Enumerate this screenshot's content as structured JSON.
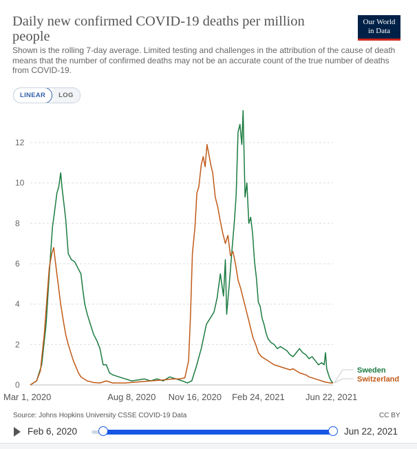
{
  "header": {
    "title": "Daily new confirmed COVID-19 deaths per million people",
    "subtitle": "Shown is the rolling 7-day average. Limited testing and challenges in the attribution of the cause of death means that the number of confirmed deaths may not be an accurate count of the true number of deaths from COVID-19.",
    "logo_line1": "Our World",
    "logo_line2": "in Data"
  },
  "controls": {
    "linear_label": "LINEAR",
    "log_label": "LOG"
  },
  "footer": {
    "source": "Source: Johns Hopkins University CSSE COVID-19 Data",
    "license": "CC BY",
    "start_date": "Feb 6, 2020",
    "end_date": "Jun 22, 2021"
  },
  "colors": {
    "sweden": "#1b7b40",
    "switzerland": "#c05917",
    "accent": "#1656e3",
    "logo_bg": "#002147",
    "logo_bar": "#ce261e"
  },
  "chart_data": {
    "type": "line",
    "title": "Daily new confirmed COVID-19 deaths per million people",
    "xlabel": "",
    "ylabel": "",
    "x_ticks": [
      "Mar 1, 2020",
      "Aug 8, 2020",
      "Nov 16, 2020",
      "Feb 24, 2021",
      "Jun 22, 2021"
    ],
    "x_range_days": [
      0,
      478
    ],
    "x_tick_days": [
      0,
      160,
      260,
      360,
      478
    ],
    "y_ticks": [
      0,
      2,
      4,
      6,
      8,
      10,
      12
    ],
    "ylim": [
      0,
      13.6
    ],
    "series": [
      {
        "name": "Sweden",
        "color": "#1b7b40",
        "points": [
          [
            0,
            0
          ],
          [
            10,
            0.2
          ],
          [
            18,
            1
          ],
          [
            25,
            3
          ],
          [
            30,
            5.5
          ],
          [
            35,
            7.8
          ],
          [
            38,
            8.5
          ],
          [
            42,
            9.5
          ],
          [
            45,
            9.8
          ],
          [
            48,
            10.5
          ],
          [
            50,
            9.8
          ],
          [
            53,
            9.0
          ],
          [
            56,
            8.2
          ],
          [
            60,
            6.5
          ],
          [
            65,
            6.2
          ],
          [
            70,
            6.1
          ],
          [
            75,
            5.8
          ],
          [
            80,
            5.5
          ],
          [
            83,
            4.7
          ],
          [
            86,
            4.0
          ],
          [
            90,
            3.5
          ],
          [
            95,
            3.0
          ],
          [
            100,
            2.5
          ],
          [
            105,
            2.2
          ],
          [
            110,
            1.8
          ],
          [
            115,
            1.0
          ],
          [
            120,
            1.0
          ],
          [
            125,
            0.6
          ],
          [
            130,
            0.5
          ],
          [
            140,
            0.4
          ],
          [
            150,
            0.3
          ],
          [
            160,
            0.2
          ],
          [
            170,
            0.25
          ],
          [
            180,
            0.3
          ],
          [
            190,
            0.2
          ],
          [
            200,
            0.3
          ],
          [
            210,
            0.2
          ],
          [
            220,
            0.4
          ],
          [
            230,
            0.3
          ],
          [
            240,
            0.2
          ],
          [
            248,
            0.1
          ],
          [
            255,
            0.2
          ],
          [
            262,
            0.9
          ],
          [
            270,
            1.8
          ],
          [
            278,
            3.0
          ],
          [
            284,
            3.3
          ],
          [
            290,
            3.6
          ],
          [
            295,
            4.3
          ],
          [
            300,
            5.5
          ],
          [
            305,
            4.4
          ],
          [
            308,
            6.2
          ],
          [
            310,
            3.5
          ],
          [
            314,
            4.9
          ],
          [
            318,
            6.5
          ],
          [
            322,
            8.0
          ],
          [
            325,
            9.4
          ],
          [
            328,
            12.5
          ],
          [
            331,
            12.9
          ],
          [
            334,
            11.9
          ],
          [
            336,
            13.6
          ],
          [
            339,
            9.3
          ],
          [
            342,
            10.0
          ],
          [
            345,
            8.0
          ],
          [
            348,
            8.3
          ],
          [
            351,
            7.5
          ],
          [
            354,
            6.1
          ],
          [
            357,
            5.3
          ],
          [
            360,
            4.1
          ],
          [
            363,
            3.9
          ],
          [
            366,
            3.3
          ],
          [
            369,
            3.0
          ],
          [
            372,
            2.6
          ],
          [
            375,
            2.3
          ],
          [
            380,
            2.1
          ],
          [
            385,
            2.0
          ],
          [
            390,
            1.8
          ],
          [
            395,
            1.9
          ],
          [
            400,
            1.8
          ],
          [
            405,
            1.7
          ],
          [
            410,
            1.5
          ],
          [
            415,
            1.4
          ],
          [
            420,
            1.6
          ],
          [
            425,
            1.8
          ],
          [
            430,
            1.6
          ],
          [
            435,
            1.5
          ],
          [
            440,
            1.3
          ],
          [
            445,
            1.4
          ],
          [
            450,
            1.2
          ],
          [
            455,
            1.0
          ],
          [
            460,
            1.1
          ],
          [
            464,
            1.0
          ],
          [
            466,
            1.6
          ],
          [
            468,
            0.8
          ],
          [
            470,
            0.6
          ],
          [
            472,
            0.4
          ],
          [
            475,
            0.2
          ],
          [
            478,
            0.1
          ]
        ]
      },
      {
        "name": "Switzerland",
        "color": "#c05917",
        "points": [
          [
            0,
            0
          ],
          [
            10,
            0.2
          ],
          [
            16,
            0.7
          ],
          [
            22,
            2.5
          ],
          [
            27,
            4.6
          ],
          [
            30,
            5.8
          ],
          [
            34,
            6.5
          ],
          [
            37,
            6.8
          ],
          [
            40,
            6.0
          ],
          [
            44,
            5.0
          ],
          [
            48,
            4.0
          ],
          [
            52,
            3.2
          ],
          [
            56,
            2.5
          ],
          [
            60,
            2.0
          ],
          [
            64,
            1.6
          ],
          [
            68,
            1.2
          ],
          [
            72,
            0.9
          ],
          [
            76,
            0.6
          ],
          [
            80,
            0.4
          ],
          [
            85,
            0.3
          ],
          [
            90,
            0.2
          ],
          [
            100,
            0.12
          ],
          [
            110,
            0.1
          ],
          [
            120,
            0.2
          ],
          [
            130,
            0.1
          ],
          [
            150,
            0.1
          ],
          [
            170,
            0.15
          ],
          [
            190,
            0.2
          ],
          [
            210,
            0.25
          ],
          [
            225,
            0.3
          ],
          [
            235,
            0.3
          ],
          [
            244,
            0.35
          ],
          [
            250,
            1.2
          ],
          [
            253,
            3.5
          ],
          [
            256,
            6.5
          ],
          [
            260,
            7.8
          ],
          [
            263,
            9.5
          ],
          [
            266,
            9.8
          ],
          [
            270,
            10.9
          ],
          [
            273,
            11.3
          ],
          [
            276,
            10.8
          ],
          [
            279,
            11.9
          ],
          [
            282,
            11.4
          ],
          [
            285,
            10.9
          ],
          [
            288,
            10.5
          ],
          [
            292,
            9.3
          ],
          [
            296,
            8.8
          ],
          [
            300,
            8.1
          ],
          [
            304,
            7.5
          ],
          [
            308,
            7.0
          ],
          [
            312,
            7.4
          ],
          [
            316,
            6.4
          ],
          [
            320,
            6.6
          ],
          [
            324,
            6.0
          ],
          [
            328,
            5.2
          ],
          [
            332,
            4.8
          ],
          [
            336,
            4.3
          ],
          [
            340,
            3.8
          ],
          [
            344,
            3.3
          ],
          [
            348,
            2.8
          ],
          [
            352,
            2.3
          ],
          [
            356,
            2.0
          ],
          [
            360,
            1.6
          ],
          [
            365,
            1.4
          ],
          [
            370,
            1.3
          ],
          [
            375,
            1.2
          ],
          [
            380,
            1.1
          ],
          [
            385,
            1.0
          ],
          [
            390,
            0.95
          ],
          [
            395,
            0.9
          ],
          [
            400,
            0.85
          ],
          [
            405,
            0.8
          ],
          [
            410,
            0.75
          ],
          [
            415,
            0.8
          ],
          [
            420,
            0.7
          ],
          [
            425,
            0.6
          ],
          [
            430,
            0.55
          ],
          [
            435,
            0.5
          ],
          [
            440,
            0.4
          ],
          [
            445,
            0.35
          ],
          [
            450,
            0.3
          ],
          [
            455,
            0.25
          ],
          [
            460,
            0.2
          ],
          [
            465,
            0.15
          ],
          [
            470,
            0.12
          ],
          [
            475,
            0.1
          ],
          [
            478,
            0.1
          ]
        ]
      }
    ]
  }
}
